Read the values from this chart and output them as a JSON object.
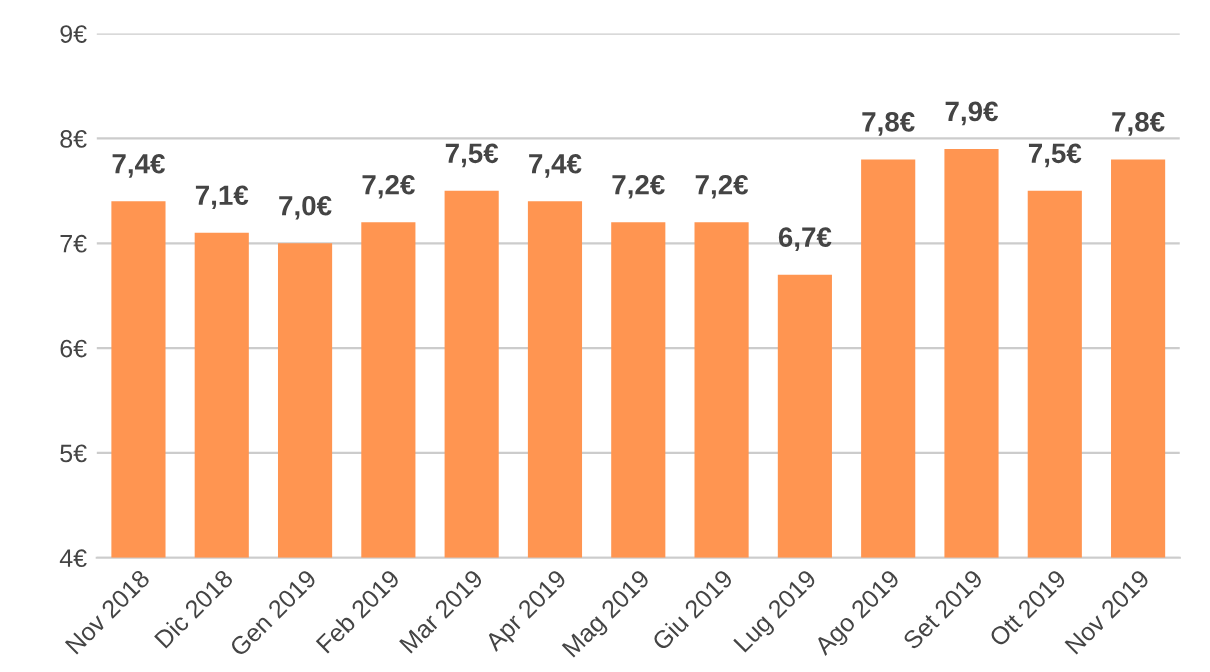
{
  "chart_data": {
    "type": "bar",
    "categories": [
      "Nov 2018",
      "Dic 2018",
      "Gen 2019",
      "Feb 2019",
      "Mar 2019",
      "Apr 2019",
      "Mag 2019",
      "Giu 2019",
      "Lug 2019",
      "Ago 2019",
      "Set 2019",
      "Ott 2019",
      "Nov 2019"
    ],
    "values": [
      7.4,
      7.1,
      7.0,
      7.2,
      7.5,
      7.4,
      7.2,
      7.2,
      6.7,
      7.8,
      7.9,
      7.5,
      7.8
    ],
    "value_labels": [
      "7,4€",
      "7,1€",
      "7,0€",
      "7,2€",
      "7,5€",
      "7,4€",
      "7,2€",
      "7,2€",
      "6,7€",
      "7,8€",
      "7,9€",
      "7,5€",
      "7,8€"
    ],
    "color": "#ff9551",
    "ylim": [
      4,
      9
    ],
    "yticks": [
      {
        "value": 4,
        "label": "4€"
      },
      {
        "value": 5,
        "label": "5€"
      },
      {
        "value": 6,
        "label": "6€"
      },
      {
        "value": 7,
        "label": "7€"
      },
      {
        "value": 8,
        "label": "8€"
      },
      {
        "value": 9,
        "label": "9€"
      }
    ],
    "grid": "y",
    "legend": false
  }
}
